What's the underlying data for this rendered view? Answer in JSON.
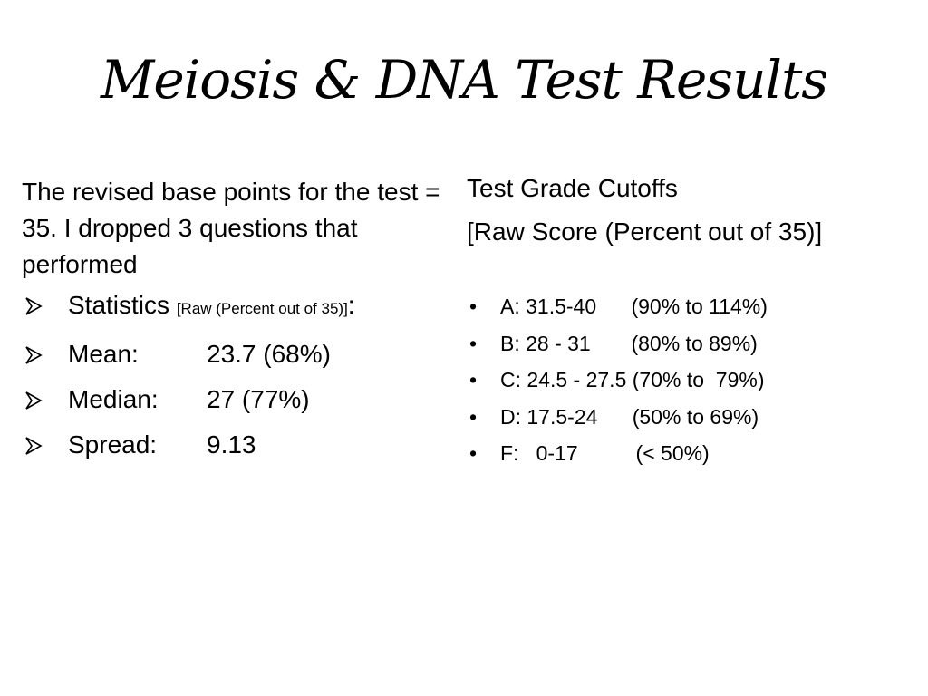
{
  "slide": {
    "title": "Meiosis & DNA Test Results"
  },
  "left": {
    "intro": "The revised base points for the test = 35. I dropped 3 questions that performed",
    "statistics_label": "Statistics",
    "statistics_note": "[Raw (Percent out of 35)]",
    "statistics_colon": ":",
    "stats": [
      {
        "label": "Mean:",
        "value": "23.7 (68%)"
      },
      {
        "label": "Median:",
        "value": "27 (77%)"
      },
      {
        "label": "Spread:",
        "value": "9.13"
      }
    ],
    "bullet_icon": "arrow-bullet-icon"
  },
  "right": {
    "heading": "Test Grade Cutoffs",
    "subheading": "[Raw Score (Percent out of 35)]",
    "grades": [
      {
        "range": "A: 31.5-40      ",
        "percent": "(90% to 114%)"
      },
      {
        "range": "B: 28 - 31       ",
        "percent": "(80% to 89%)"
      },
      {
        "range": "C: 24.5 - 27.5 ",
        "percent": "(70% to  79%)"
      },
      {
        "range": "D: 17.5-24      ",
        "percent": "(50% to 69%)"
      },
      {
        "range": "F:   0-17          ",
        "percent": "(< 50%)"
      }
    ],
    "bullet_icon": "dot-bullet-icon"
  }
}
